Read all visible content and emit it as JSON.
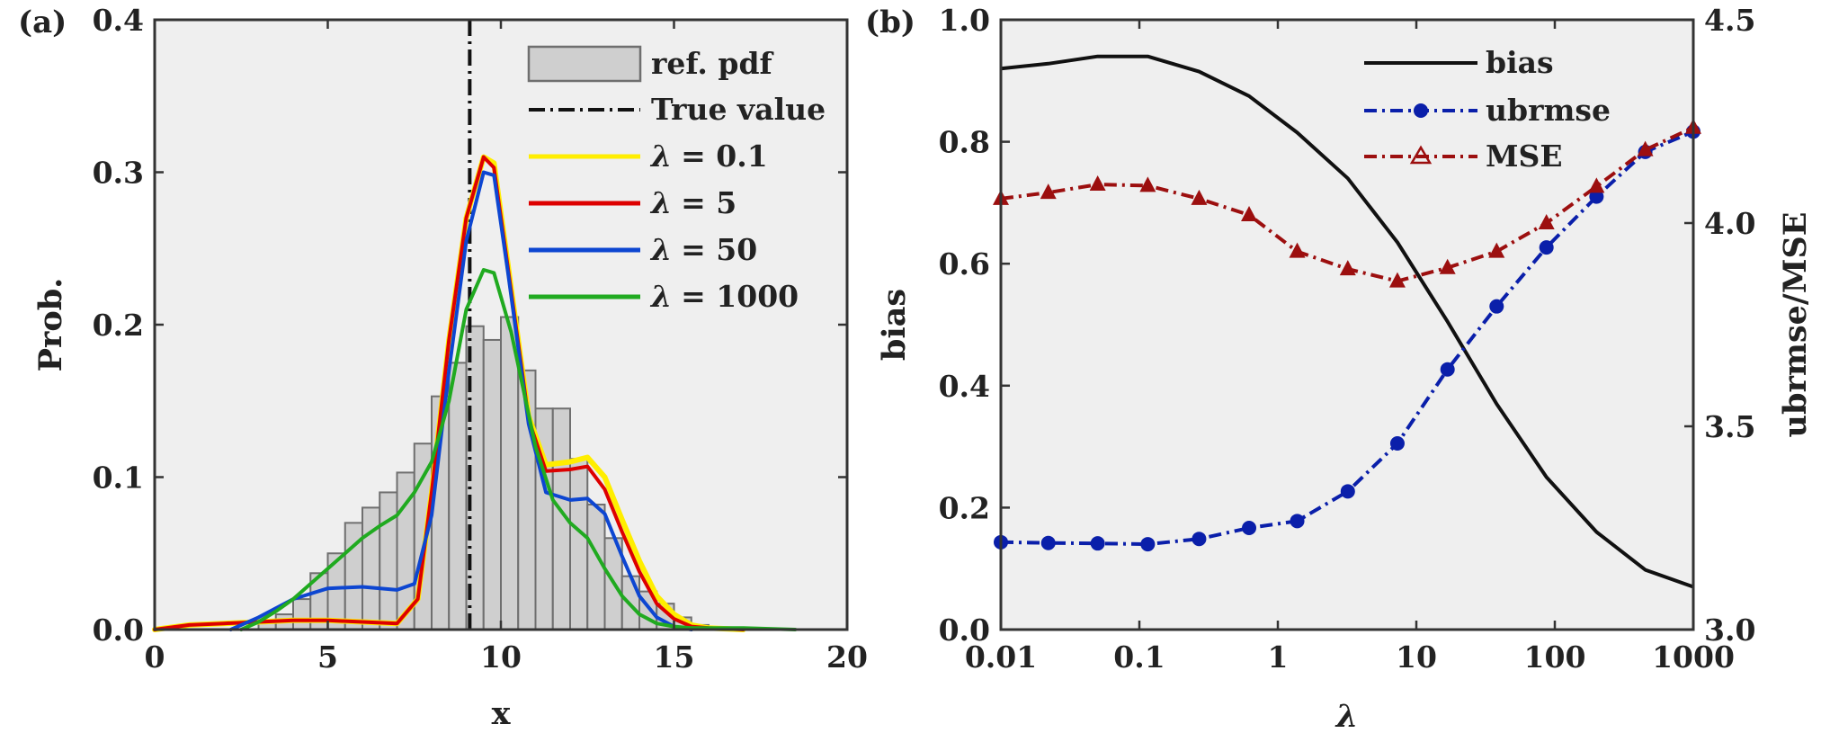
{
  "colors": {
    "plot_bg": "#efefef",
    "axis": "#333333",
    "bar_fill": "#cfcfcf",
    "bar_edge": "#6f6f6f",
    "yellow": "#ffee00",
    "red": "#dd0000",
    "blue": "#0d46d1",
    "green": "#20aa20",
    "black": "#111111",
    "navy": "#0a1faa",
    "darkred": "#9c0f0f"
  },
  "chart_data": [
    {
      "panel_label": "(a)",
      "type": "histogram+line",
      "xlabel": "x",
      "ylabel": "Prob.",
      "xlim": [
        0,
        20
      ],
      "ylim": [
        0,
        0.4
      ],
      "xticks": [
        "0",
        "5",
        "10",
        "15",
        "20"
      ],
      "yticks": [
        "0.0",
        "0.1",
        "0.2",
        "0.3",
        "0.4"
      ],
      "true_value": 9.1,
      "histogram": {
        "name": "ref. pdf",
        "bin_width": 0.5,
        "bin_starts": [
          3,
          3.5,
          4,
          4.5,
          5,
          5.5,
          6,
          6.5,
          7,
          7.5,
          8,
          8.5,
          9,
          9.5,
          10,
          10.5,
          11,
          11.5,
          12,
          12.5,
          13,
          13.5,
          14,
          14.5,
          15,
          15.5
        ],
        "values": [
          0.005,
          0.01,
          0.02,
          0.037,
          0.05,
          0.07,
          0.08,
          0.09,
          0.103,
          0.122,
          0.153,
          0.175,
          0.199,
          0.19,
          0.205,
          0.17,
          0.145,
          0.145,
          0.112,
          0.082,
          0.06,
          0.035,
          0.025,
          0.017,
          0.008,
          0.003
        ]
      },
      "series": [
        {
          "name": "λ = 0.1",
          "legend_prefix": "λ",
          "legend_value": "= 0.1",
          "color": "yellow",
          "x": [
            0,
            1,
            2,
            3,
            4,
            5,
            6,
            7,
            7.6,
            8,
            8.5,
            9,
            9.5,
            9.8,
            10.2,
            10.8,
            11.3,
            12,
            12.5,
            13,
            13.5,
            14,
            14.5,
            15,
            15.5,
            16,
            17
          ],
          "y": [
            0,
            0.003,
            0.004,
            0.005,
            0.006,
            0.006,
            0.005,
            0.004,
            0.02,
            0.09,
            0.19,
            0.27,
            0.31,
            0.306,
            0.24,
            0.14,
            0.108,
            0.11,
            0.113,
            0.1,
            0.072,
            0.045,
            0.022,
            0.01,
            0.003,
            0.001,
            0
          ]
        },
        {
          "name": "λ = 5",
          "legend_prefix": "λ",
          "legend_value": "= 5",
          "color": "red",
          "x": [
            0,
            1,
            2,
            3,
            4,
            5,
            6,
            7,
            7.6,
            8,
            8.5,
            9,
            9.5,
            9.8,
            10.2,
            10.8,
            11.3,
            12,
            12.5,
            13,
            13.5,
            14,
            14.5,
            15,
            15.5,
            16,
            17
          ],
          "y": [
            0,
            0.003,
            0.004,
            0.005,
            0.006,
            0.006,
            0.005,
            0.004,
            0.02,
            0.09,
            0.19,
            0.27,
            0.31,
            0.303,
            0.238,
            0.138,
            0.104,
            0.105,
            0.107,
            0.092,
            0.064,
            0.038,
            0.017,
            0.007,
            0.002,
            0.001,
            0
          ]
        },
        {
          "name": "λ = 50",
          "legend_prefix": "λ",
          "legend_value": "= 50",
          "color": "blue",
          "x": [
            2.2,
            3,
            4,
            5,
            6,
            7,
            7.5,
            8,
            8.5,
            9,
            9.5,
            9.8,
            10.2,
            10.8,
            11.3,
            12,
            12.5,
            13,
            13.5,
            14,
            14.5,
            15,
            15.5
          ],
          "y": [
            0,
            0.008,
            0.02,
            0.027,
            0.028,
            0.026,
            0.03,
            0.075,
            0.17,
            0.255,
            0.3,
            0.298,
            0.235,
            0.135,
            0.09,
            0.085,
            0.086,
            0.076,
            0.048,
            0.022,
            0.008,
            0.002,
            0
          ]
        },
        {
          "name": "λ = 1000",
          "legend_prefix": "λ",
          "legend_value": "= 1000",
          "color": "green",
          "x": [
            2.5,
            3,
            3.5,
            4,
            4.5,
            5,
            5.5,
            6,
            6.5,
            7,
            7.5,
            8,
            8.5,
            9,
            9.5,
            9.8,
            10.3,
            11,
            11.5,
            12,
            12.5,
            13,
            13.5,
            14,
            14.5,
            15,
            15.5,
            16,
            17,
            18.5
          ],
          "y": [
            0,
            0.005,
            0.012,
            0.02,
            0.03,
            0.04,
            0.05,
            0.06,
            0.068,
            0.075,
            0.09,
            0.11,
            0.15,
            0.21,
            0.236,
            0.234,
            0.195,
            0.12,
            0.085,
            0.07,
            0.06,
            0.04,
            0.022,
            0.01,
            0.004,
            0.002,
            0.001,
            0.001,
            0.001,
            0
          ]
        }
      ],
      "legend": {
        "placement": "top-right",
        "hist_label": "ref. pdf",
        "true_label": "True value"
      }
    },
    {
      "panel_label": "(b)",
      "type": "line",
      "xscale": "log",
      "xlabel": "λ",
      "ylabel_left": "bias",
      "ylabel_right": "ubrmse/MSE",
      "xlim": [
        0.01,
        1000
      ],
      "ylim_left": [
        0,
        1
      ],
      "ylim_right": [
        3,
        4.5
      ],
      "xticks": [
        "0.01",
        "0.1",
        "1",
        "10",
        "100",
        "1000"
      ],
      "yticks_left": [
        "0.0",
        "0.2",
        "0.4",
        "0.6",
        "0.8",
        "1.0"
      ],
      "yticks_right": [
        "3.0",
        "3.5",
        "4.0",
        "4.5"
      ],
      "lambda": [
        0.01,
        0.022,
        0.05,
        0.115,
        0.27,
        0.62,
        1.38,
        3.2,
        7.3,
        16.8,
        38,
        87,
        200,
        450,
        1000
      ],
      "series": [
        {
          "name": "bias",
          "axis": "left",
          "color": "black",
          "style": "solid",
          "marker": "none",
          "values": [
            0.92,
            0.928,
            0.94,
            0.94,
            0.915,
            0.875,
            0.815,
            0.74,
            0.635,
            0.505,
            0.37,
            0.25,
            0.16,
            0.098,
            0.07
          ]
        },
        {
          "name": "ubrmse",
          "axis": "right",
          "color": "navy",
          "style": "dashdot",
          "marker": "circle",
          "values": [
            3.215,
            3.213,
            3.212,
            3.21,
            3.223,
            3.25,
            3.267,
            3.34,
            3.458,
            3.64,
            3.795,
            3.94,
            4.065,
            4.175,
            4.225
          ]
        },
        {
          "name": "MSE",
          "axis": "right",
          "color": "darkred",
          "style": "dashdot",
          "marker": "triangle",
          "values": [
            4.06,
            4.075,
            4.095,
            4.092,
            4.06,
            4.02,
            3.93,
            3.887,
            3.857,
            3.89,
            3.93,
            4.0,
            4.09,
            4.18,
            4.235
          ]
        }
      ],
      "legend": {
        "placement": "top-right",
        "labels": [
          "bias",
          "ubrmse",
          "MSE"
        ]
      }
    }
  ]
}
